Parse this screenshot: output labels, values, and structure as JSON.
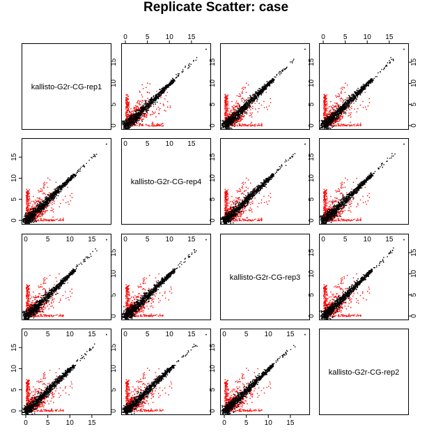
{
  "title": "Replicate Scatter: case",
  "chart_data": {
    "type": "scatter",
    "layout": "pairs-matrix",
    "samples": [
      "kallisto-G2r-CG-rep1",
      "kallisto-G2r-CG-rep4",
      "kallisto-G2r-CG-rep3",
      "kallisto-G2r-CG-rep2"
    ],
    "xlim": [
      0,
      18.5
    ],
    "ylim": [
      0,
      18.5
    ],
    "ticks": [
      0,
      5,
      10,
      15
    ],
    "point_colors": {
      "concordant": "#000000",
      "discordant": "#ff0000"
    },
    "max_point": [
      18.2,
      18.2
    ]
  }
}
